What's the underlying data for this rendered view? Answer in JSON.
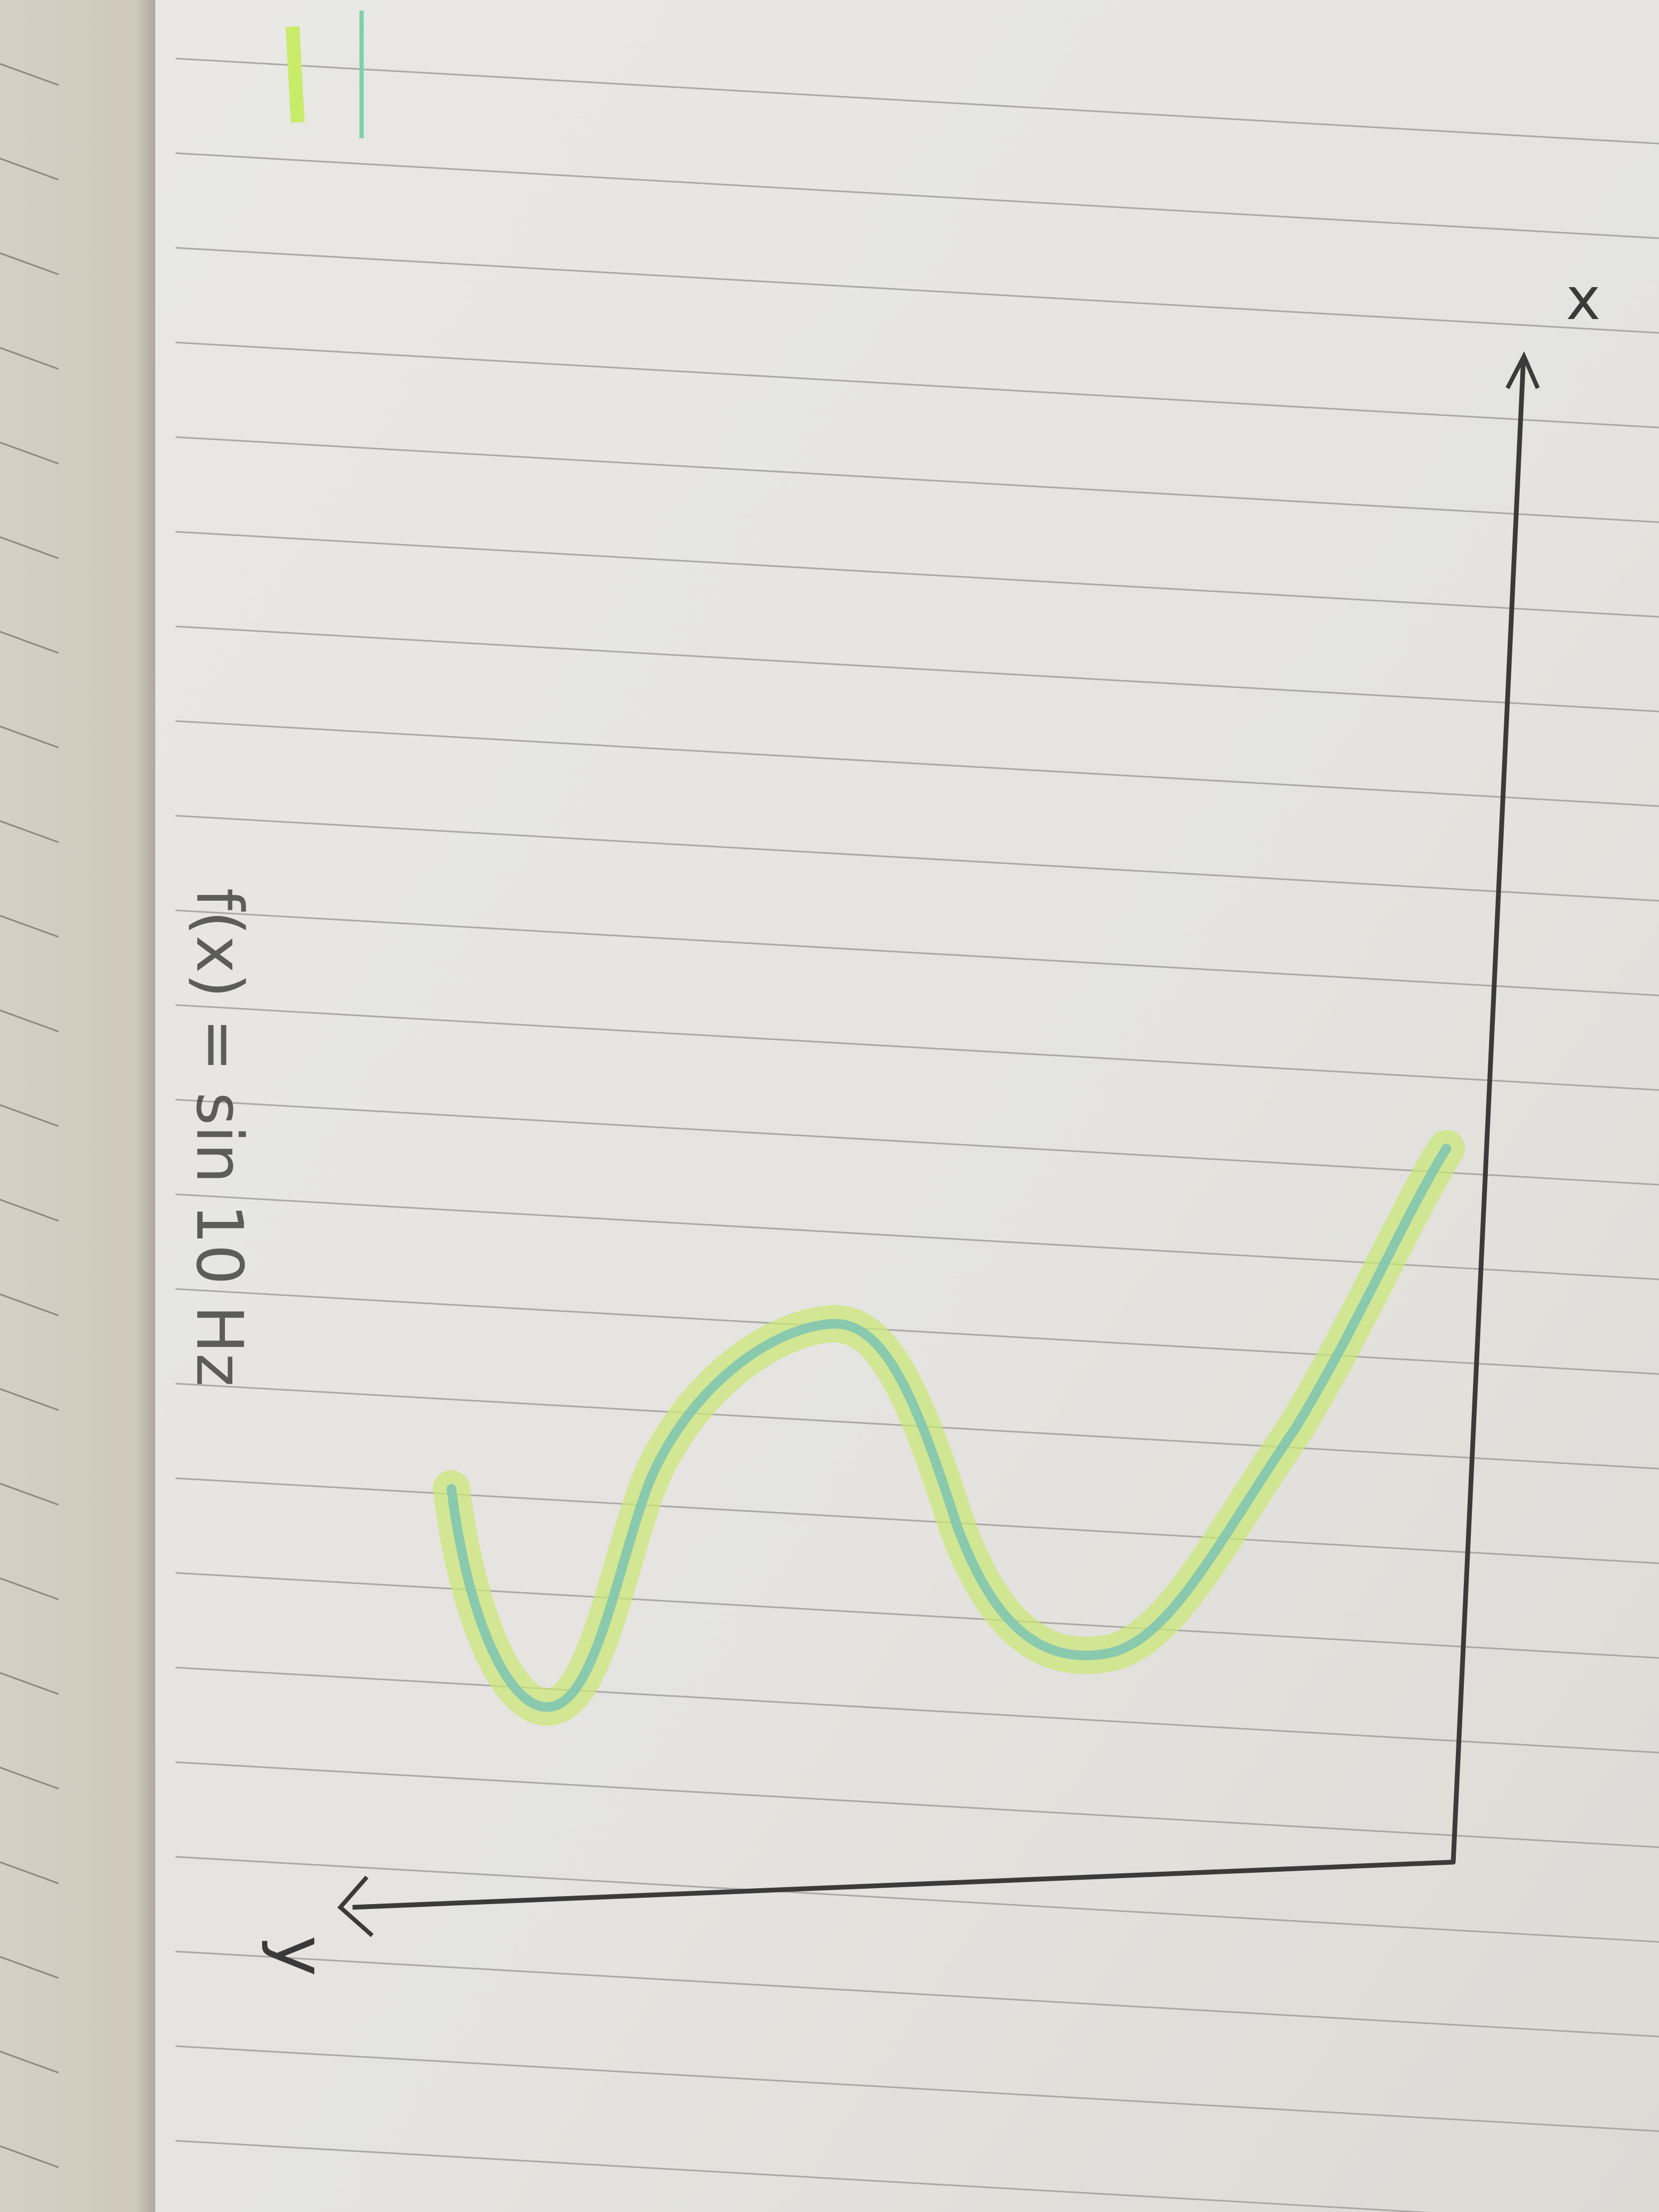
{
  "sketch": {
    "labels": {
      "x_axis": "x",
      "y_axis": "y",
      "note": "f(x) = sin 10 Hz"
    }
  }
}
